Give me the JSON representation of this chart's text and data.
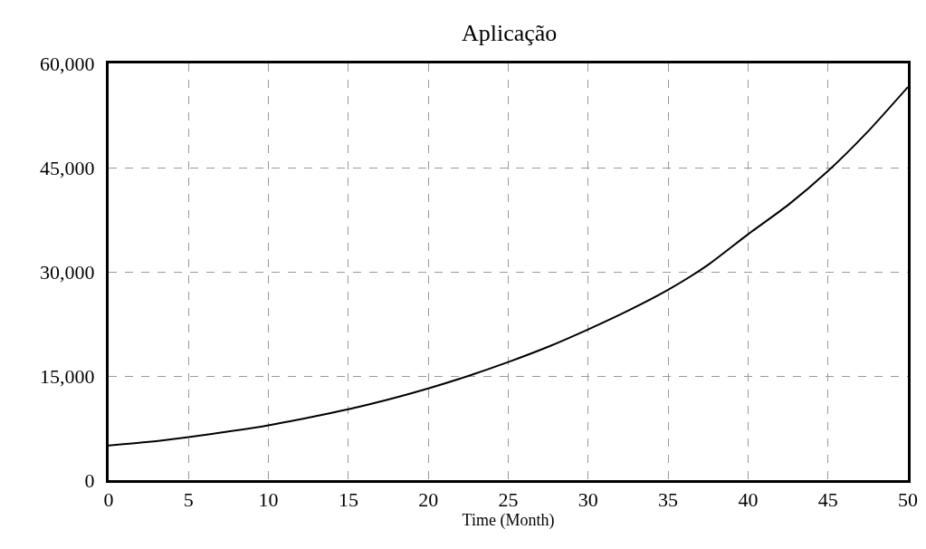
{
  "chart_data": {
    "type": "line",
    "title": "Aplicação",
    "xlabel": "Time (Month)",
    "x": [
      0,
      2.5,
      5,
      7.5,
      10,
      12.5,
      15,
      17.5,
      20,
      22.5,
      25,
      27.5,
      30,
      32.5,
      35,
      37.5,
      40,
      42.5,
      45,
      47.5,
      50
    ],
    "series": [
      {
        "color": "#000000",
        "values": [
          5000,
          5500,
          6200,
          7000,
          7900,
          9000,
          10200,
          11600,
          13200,
          15000,
          17000,
          19200,
          21700,
          24400,
          27400,
          31000,
          35400,
          39600,
          44500,
          50200,
          56600
        ]
      }
    ],
    "xlim": [
      0,
      50
    ],
    "xticks": [
      0,
      5,
      10,
      15,
      20,
      25,
      30,
      35,
      40,
      45,
      50
    ],
    "ylim": [
      0,
      60000
    ],
    "yticks": [
      {
        "value": 0,
        "label": "0"
      },
      {
        "value": 15000,
        "label": "15,000"
      },
      {
        "value": 30000,
        "label": "30,000"
      },
      {
        "value": 45000,
        "label": "45,000"
      },
      {
        "value": 60000,
        "label": "60,000"
      }
    ],
    "grid": true,
    "marker": "none",
    "line_style": "solid"
  }
}
